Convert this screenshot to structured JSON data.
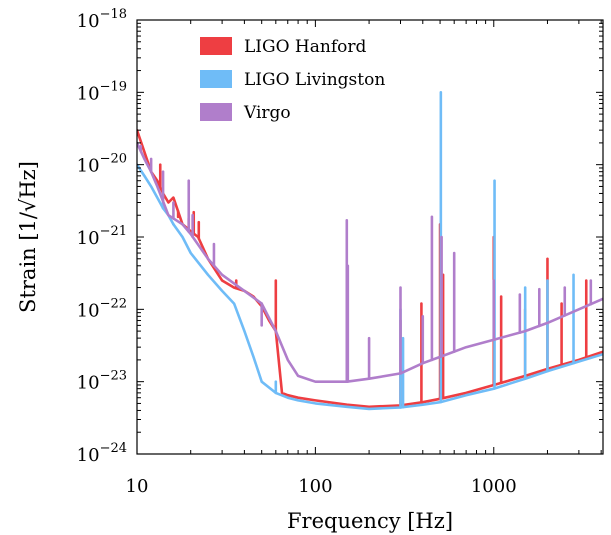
{
  "chart_data": {
    "type": "line",
    "title": "",
    "xlabel": "Frequency [Hz]",
    "ylabel": "Strain [1/√Hz]",
    "xscale": "log",
    "yscale": "log",
    "xlim": [
      10,
      4096
    ],
    "ylim": [
      1e-24,
      1e-18
    ],
    "x_ticks": [
      {
        "value": 10,
        "label": "10"
      },
      {
        "value": 100,
        "label": "100"
      },
      {
        "value": 1000,
        "label": "1000"
      }
    ],
    "y_ticks": [
      {
        "value": 1e-18,
        "base": "10",
        "exp": "−18"
      },
      {
        "value": 1e-19,
        "base": "10",
        "exp": "−19"
      },
      {
        "value": 1e-20,
        "base": "10",
        "exp": "−20"
      },
      {
        "value": 1e-21,
        "base": "10",
        "exp": "−21"
      },
      {
        "value": 1e-22,
        "base": "10",
        "exp": "−22"
      },
      {
        "value": 1e-23,
        "base": "10",
        "exp": "−23"
      },
      {
        "value": 1e-24,
        "base": "10",
        "exp": "−24"
      }
    ],
    "grid": false,
    "legend_position": "top-left",
    "series": [
      {
        "name": "LIGO Hanford",
        "color": "#ee3e42",
        "points": [
          [
            10,
            3e-20
          ],
          [
            11,
            1.5e-20
          ],
          [
            12,
            8e-21
          ],
          [
            13,
            6e-21
          ],
          [
            14,
            4e-21
          ],
          [
            15,
            3e-21
          ],
          [
            16,
            3.5e-21
          ],
          [
            18,
            1.5e-21
          ],
          [
            20,
            1.2e-21
          ],
          [
            22,
            1e-21
          ],
          [
            25,
            5e-22
          ],
          [
            30,
            2.5e-22
          ],
          [
            35,
            2e-22
          ],
          [
            40,
            1.8e-22
          ],
          [
            45,
            1.5e-22
          ],
          [
            50,
            1.1e-22
          ],
          [
            55,
            7e-23
          ],
          [
            60,
            5e-23
          ],
          [
            65,
            7e-24
          ],
          [
            70,
            6.5e-24
          ],
          [
            80,
            6e-24
          ],
          [
            100,
            5.5e-24
          ],
          [
            150,
            4.8e-24
          ],
          [
            200,
            4.5e-24
          ],
          [
            300,
            4.7e-24
          ],
          [
            400,
            5.2e-24
          ],
          [
            500,
            5.8e-24
          ],
          [
            700,
            7e-24
          ],
          [
            1000,
            9e-24
          ],
          [
            1500,
            1.2e-23
          ],
          [
            2000,
            1.5e-23
          ],
          [
            3000,
            2e-23
          ],
          [
            4096,
            2.6e-23
          ]
        ],
        "lines": [
          [
            13.5,
            1e-20
          ],
          [
            17,
            1.9e-21
          ],
          [
            19.5,
            1.8e-21
          ],
          [
            20.8,
            2.2e-21
          ],
          [
            22.2,
            1.6e-21
          ],
          [
            36,
            2.5e-22
          ],
          [
            60,
            2.5e-22
          ],
          [
            300,
            7e-23
          ],
          [
            393,
            1.2e-22
          ],
          [
            500,
            1.5e-21
          ],
          [
            520,
            3e-22
          ],
          [
            1000,
            1e-21
          ],
          [
            1100,
            1.5e-22
          ],
          [
            1500,
            1e-22
          ],
          [
            2000,
            5e-22
          ],
          [
            2400,
            1.2e-22
          ],
          [
            3300,
            2.5e-22
          ]
        ]
      },
      {
        "name": "LIGO Livingston",
        "color": "#6fbcf7",
        "points": [
          [
            10,
            1e-20
          ],
          [
            11,
            7e-21
          ],
          [
            12,
            5e-21
          ],
          [
            13,
            3.5e-21
          ],
          [
            14,
            2.5e-21
          ],
          [
            15,
            2e-21
          ],
          [
            16,
            1.5e-21
          ],
          [
            18,
            1e-21
          ],
          [
            20,
            6e-22
          ],
          [
            25,
            3e-22
          ],
          [
            30,
            1.8e-22
          ],
          [
            35,
            1.2e-22
          ],
          [
            40,
            5e-23
          ],
          [
            45,
            2.2e-23
          ],
          [
            50,
            1e-23
          ],
          [
            60,
            7e-24
          ],
          [
            70,
            6e-24
          ],
          [
            80,
            5.5e-24
          ],
          [
            100,
            5e-24
          ],
          [
            150,
            4.5e-24
          ],
          [
            200,
            4.2e-24
          ],
          [
            300,
            4.4e-24
          ],
          [
            400,
            4.8e-24
          ],
          [
            500,
            5.2e-24
          ],
          [
            700,
            6.5e-24
          ],
          [
            1000,
            8e-24
          ],
          [
            1500,
            1.1e-23
          ],
          [
            2000,
            1.4e-23
          ],
          [
            3000,
            1.9e-23
          ],
          [
            4096,
            2.4e-23
          ]
        ],
        "lines": [
          [
            14,
            3e-21
          ],
          [
            16,
            1.5e-21
          ],
          [
            60,
            1e-23
          ],
          [
            300,
            1e-22
          ],
          [
            310,
            4e-23
          ],
          [
            505,
            1e-19
          ],
          [
            1010,
            6e-21
          ],
          [
            1500,
            2e-22
          ],
          [
            2000,
            2.5e-22
          ],
          [
            2800,
            3e-22
          ]
        ]
      },
      {
        "name": "Virgo",
        "color": "#b07ecb",
        "points": [
          [
            10,
            2e-20
          ],
          [
            11,
            1.2e-20
          ],
          [
            12,
            8e-21
          ],
          [
            13,
            5e-21
          ],
          [
            15,
            2e-21
          ],
          [
            18,
            1.5e-21
          ],
          [
            20,
            1.1e-21
          ],
          [
            25,
            5e-22
          ],
          [
            30,
            3e-22
          ],
          [
            40,
            1.8e-22
          ],
          [
            50,
            1.2e-22
          ],
          [
            60,
            5e-23
          ],
          [
            70,
            2e-23
          ],
          [
            80,
            1.2e-23
          ],
          [
            100,
            1e-23
          ],
          [
            150,
            1e-23
          ],
          [
            200,
            1.1e-23
          ],
          [
            300,
            1.3e-23
          ],
          [
            400,
            1.8e-23
          ],
          [
            500,
            2.2e-23
          ],
          [
            700,
            3e-23
          ],
          [
            1000,
            3.8e-23
          ],
          [
            1500,
            5e-23
          ],
          [
            2000,
            6.5e-23
          ],
          [
            3000,
            1e-22
          ],
          [
            4096,
            1.4e-22
          ]
        ],
        "lines": [
          [
            10.5,
            1.8e-20
          ],
          [
            12,
            1.2e-20
          ],
          [
            14,
            8e-21
          ],
          [
            16,
            3e-21
          ],
          [
            19.5,
            6e-21
          ],
          [
            20.5,
            2e-21
          ],
          [
            27,
            8e-22
          ],
          [
            50,
            6e-23
          ],
          [
            150,
            1.7e-21
          ],
          [
            152,
            4e-22
          ],
          [
            200,
            4e-23
          ],
          [
            300,
            2e-22
          ],
          [
            400,
            8e-23
          ],
          [
            450,
            1.9e-21
          ],
          [
            510,
            1e-21
          ],
          [
            600,
            6e-22
          ],
          [
            1000,
            2.5e-22
          ],
          [
            1400,
            1.6e-22
          ],
          [
            1800,
            1.9e-22
          ],
          [
            2500,
            2e-22
          ],
          [
            3500,
            2.5e-22
          ]
        ]
      }
    ]
  }
}
